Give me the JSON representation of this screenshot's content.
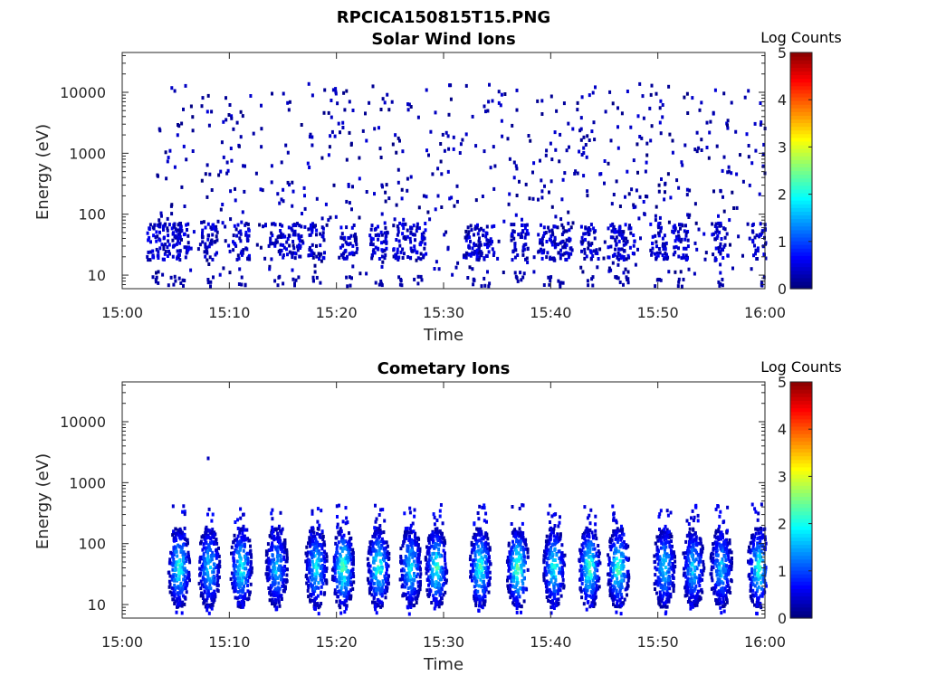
{
  "figure": {
    "title": "RPCICA150815T15.PNG"
  },
  "chart_data": [
    {
      "type": "heatmap",
      "title": "Solar Wind Ions",
      "xlabel": "Time",
      "ylabel": "Energy (eV)",
      "x_ticks": [
        "15:00",
        "15:10",
        "15:20",
        "15:30",
        "15:40",
        "15:50",
        "16:00"
      ],
      "y_ticks": [
        "10",
        "100",
        "1000",
        "10000"
      ],
      "x_range": [
        "15:00",
        "16:00"
      ],
      "y_range": [
        6,
        45000
      ],
      "y_scale": "log",
      "colorbar": {
        "label": "Log Counts",
        "range": [
          0,
          5
        ],
        "ticks": [
          "0",
          "1",
          "2",
          "3",
          "4",
          "5"
        ],
        "colormap": "jet"
      },
      "bursts_minutes": [
        3,
        4.5,
        5.3,
        8,
        11,
        14.5,
        16,
        18,
        21,
        23.8,
        26,
        27.5,
        32.5,
        33.8,
        37,
        39.5,
        41,
        43.5,
        46,
        47,
        50,
        52,
        55.7,
        59.5
      ],
      "description_level": "sparse low counts (log ~0-0.5) scattered across 10-10000 eV, clusters at 20-80 eV"
    },
    {
      "type": "heatmap",
      "title": "Cometary Ions",
      "xlabel": "Time",
      "ylabel": "Energy (eV)",
      "x_ticks": [
        "15:00",
        "15:10",
        "15:20",
        "15:30",
        "15:40",
        "15:50",
        "16:00"
      ],
      "y_ticks": [
        "10",
        "100",
        "1000",
        "10000"
      ],
      "x_range": [
        "15:00",
        "16:00"
      ],
      "y_range": [
        6,
        45000
      ],
      "y_scale": "log",
      "colorbar": {
        "label": "Log Counts",
        "range": [
          0,
          5
        ],
        "ticks": [
          "0",
          "1",
          "2",
          "3",
          "4",
          "5"
        ],
        "colormap": "jet"
      },
      "bursts_minutes": [
        5.2,
        8,
        11,
        14.3,
        18,
        20.5,
        23.8,
        26.8,
        29.2,
        33.3,
        36.8,
        40.2,
        43.5,
        46.2,
        50.5,
        53.2,
        55.8,
        59.3
      ],
      "peak_energy_eV": 40,
      "peak_log_counts": 2.7
    }
  ]
}
